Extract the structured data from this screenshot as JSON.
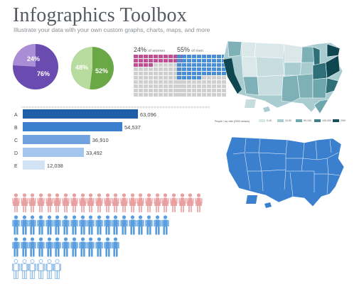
{
  "header": {
    "title": "Infographics Toolbox",
    "subtitle": "Illustrate your data with your own custom graphs, charts, maps, and more"
  },
  "pies": [
    {
      "small_label": "24%",
      "large_label": "76%",
      "small_fraction": 0.24,
      "small_color": "#a98ed6",
      "large_color": "#6a4cb0"
    },
    {
      "small_label": "48%",
      "large_label": "52%",
      "small_fraction": 0.48,
      "small_color": "#b8dca0",
      "large_color": "#6aa845"
    }
  ],
  "waffles": [
    {
      "percent": "24%",
      "caption": "of women",
      "value": 24,
      "fill_color": "#c14f93",
      "empty_color": "#cfcfcf"
    },
    {
      "percent": "55%",
      "caption": "of men",
      "value": 55,
      "fill_color": "#4a8ed3",
      "empty_color": "#cfcfcf"
    }
  ],
  "chart_data": {
    "type": "bar",
    "orientation": "horizontal",
    "categories": [
      "A",
      "B",
      "C",
      "D",
      "E"
    ],
    "values": [
      63096,
      54537,
      36910,
      33492,
      12038
    ],
    "value_labels": [
      "63,096",
      "54,537",
      "36,910",
      "33,492",
      "12,038"
    ],
    "colors": [
      "#1f5fa8",
      "#3c7fcf",
      "#6fa2de",
      "#a4c6ee",
      "#d3e3f6"
    ],
    "xlim": [
      0,
      63096
    ]
  },
  "maps": {
    "choropleth_legend_title": "People / sq. mile (2000 census)",
    "choropleth_legend": [
      {
        "label": "0-10",
        "color": "#dbe8ea"
      },
      {
        "label": "10-50",
        "color": "#a9ccd1"
      },
      {
        "label": "50-100",
        "color": "#6ea6ae"
      },
      {
        "label": "100-200",
        "color": "#3f7f88"
      },
      {
        "label": "200+",
        "color": "#16505a"
      }
    ],
    "palette": {
      "light": "#c8dde0",
      "mid": "#7eb0b8",
      "dark": "#2f6f78",
      "darkest": "#0e4750",
      "solid_map": "#3a80cf"
    }
  },
  "pictograph": {
    "rows": [
      {
        "count": 23,
        "color": "#e8a0a0",
        "kind": "female"
      },
      {
        "count": 19,
        "color": "#5a9ee0",
        "kind": "male"
      },
      {
        "count": 13,
        "color": "#5a9ee0",
        "kind": "male"
      },
      {
        "count": 6,
        "color": "#ffffff",
        "kind": "male",
        "outline": "#5a9ee0"
      }
    ]
  }
}
